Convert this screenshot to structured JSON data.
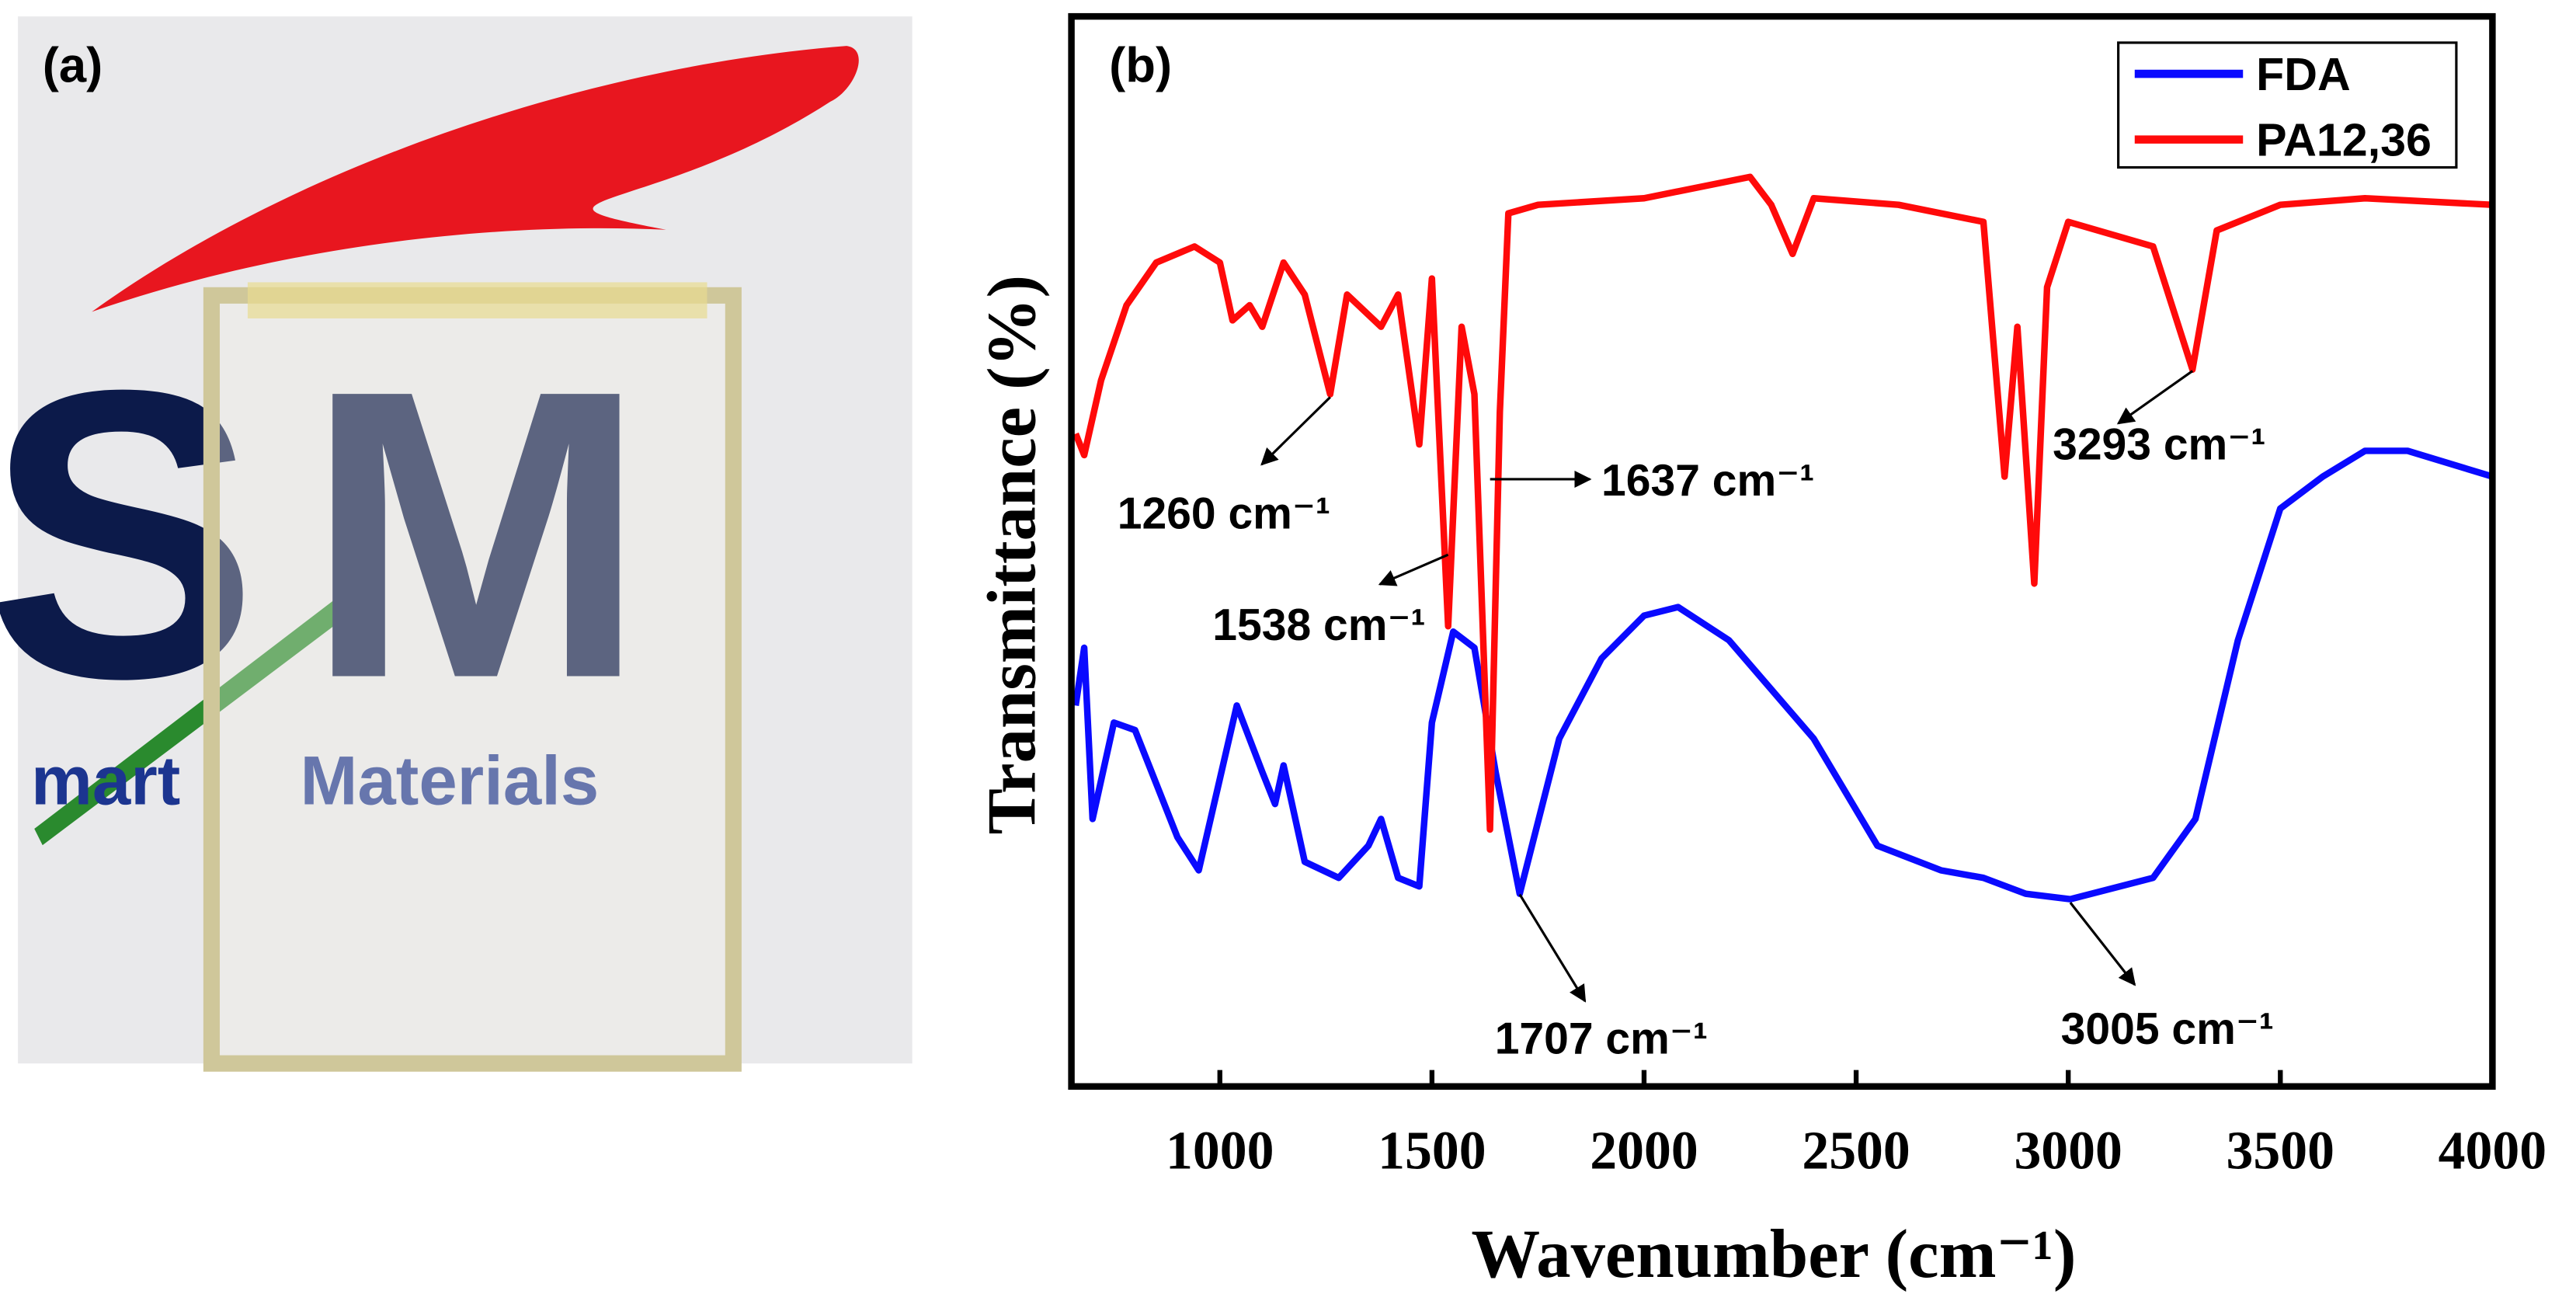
{
  "photo": {
    "label": "(a)",
    "letter_s": "S",
    "letter_m": "M",
    "word_left": "mart",
    "word_right": "Materials"
  },
  "chart_data": {
    "type": "line",
    "panel_label": "(b)",
    "x_label": "Wavenumber (cm⁻¹)",
    "y_label": "Transmittance (%)",
    "xlim": [
      650,
      4000
    ],
    "ylim": [
      0,
      100
    ],
    "xticks": [
      1000,
      1500,
      2000,
      2500,
      3000,
      3500,
      4000
    ],
    "legend": "upper right",
    "series": [
      {
        "name": "FDA",
        "color": "#0a0aff",
        "x": [
          660,
          680,
          700,
          750,
          800,
          900,
          950,
          1040,
          1100,
          1130,
          1150,
          1200,
          1280,
          1350,
          1380,
          1420,
          1470,
          1500,
          1550,
          1600,
          1650,
          1707,
          1800,
          1900,
          2000,
          2080,
          2200,
          2400,
          2550,
          2700,
          2800,
          2900,
          3005,
          3200,
          3300,
          3400,
          3500,
          3600,
          3700,
          3800,
          4000
        ],
        "values": [
          35.6,
          41,
          25,
          34,
          33.3,
          23.3,
          20.2,
          35.6,
          29.4,
          26.4,
          30,
          21,
          19.5,
          22.5,
          25,
          19.5,
          18.7,
          34,
          42.5,
          41,
          29.4,
          18,
          32.5,
          40,
          44,
          44.8,
          41.7,
          32.5,
          22.5,
          20.2,
          19.5,
          18,
          17.5,
          19.5,
          25,
          41.7,
          54,
          57,
          59.4,
          59.4,
          57
        ]
      },
      {
        "name": "PA12,36",
        "color": "#ff0a0a",
        "x": [
          660,
          680,
          720,
          780,
          850,
          940,
          1000,
          1030,
          1070,
          1100,
          1150,
          1200,
          1260,
          1300,
          1380,
          1420,
          1470,
          1500,
          1538,
          1570,
          1600,
          1637,
          1660,
          1680,
          1750,
          2000,
          2250,
          2300,
          2350,
          2400,
          2600,
          2800,
          2850,
          2880,
          2920,
          2950,
          3000,
          3200,
          3293,
          3350,
          3500,
          3700,
          4000
        ],
        "values": [
          61,
          59,
          66,
          73,
          77,
          78.5,
          77,
          71.6,
          73,
          71,
          77,
          74,
          64.7,
          74,
          71,
          74,
          60,
          75.5,
          43,
          71,
          64.7,
          24,
          63,
          81.6,
          82.4,
          83,
          85,
          82.4,
          77.8,
          83,
          82.4,
          80.8,
          57,
          71,
          47,
          74.7,
          80.8,
          78.5,
          67,
          80,
          82.4,
          83,
          82.4
        ]
      }
    ],
    "annotations": [
      {
        "text": "1260 cm⁻¹",
        "x": 1260
      },
      {
        "text": "1538 cm⁻¹",
        "x": 1538
      },
      {
        "text": "1637 cm⁻¹",
        "x": 1637
      },
      {
        "text": "3293 cm⁻¹",
        "x": 3293
      },
      {
        "text": "1707 cm⁻¹",
        "x": 1707
      },
      {
        "text": "3005 cm⁻¹",
        "x": 3005
      }
    ]
  }
}
